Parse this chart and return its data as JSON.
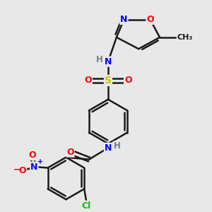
{
  "bg_color": "#e8e8e8",
  "bond_color": "#1a1a1a",
  "bond_width": 1.8,
  "atom_colors": {
    "N": "#0000ff",
    "O": "#ff0000",
    "S": "#c8c800",
    "Cl": "#00c800",
    "H": "#708090",
    "C": "#1a1a1a"
  },
  "figsize": [
    3.0,
    3.0
  ],
  "dpi": 100
}
